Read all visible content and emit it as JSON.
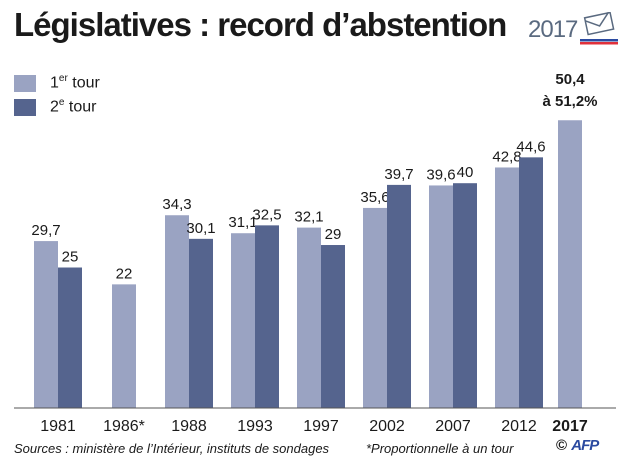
{
  "title": "Législatives : record d’abstention",
  "badge": {
    "year": "2017"
  },
  "legend": {
    "first": {
      "main": "1",
      "sup": "er",
      "rest": " tour"
    },
    "second": {
      "main": "2",
      "sup": "e",
      "rest": " tour"
    }
  },
  "colors": {
    "first_round": "#9aa3c2",
    "second_round": "#55648e",
    "axis": "#555555",
    "badge_red": "#e0303a",
    "badge_blue": "#2b4aa0"
  },
  "chart_data": {
    "type": "bar",
    "categories": [
      "1981",
      "1986*",
      "1988",
      "1993",
      "1997",
      "2002",
      "2007",
      "2012",
      "2017"
    ],
    "series": [
      {
        "name": "1er tour",
        "values": [
          29.7,
          22,
          34.3,
          31.1,
          32.1,
          35.6,
          39.6,
          42.8,
          51.2
        ]
      },
      {
        "name": "2e tour",
        "values": [
          25,
          null,
          30.1,
          32.5,
          29,
          39.7,
          40,
          44.6,
          null
        ]
      }
    ],
    "data_labels": {
      "first": [
        "29,7",
        "22",
        "34,3",
        "31,1",
        "32,1",
        "35,6",
        "39,6",
        "42,8",
        ""
      ],
      "second": [
        "25",
        "",
        "30,1",
        "32,5",
        "29",
        "39,7",
        "40",
        "44,6",
        ""
      ]
    },
    "highlight": {
      "category": "2017",
      "line1": "50,4",
      "line2": "à 51,2%"
    },
    "ylim": [
      0,
      55
    ],
    "grid": false,
    "legend_position": "top-left"
  },
  "footer": {
    "source": "Sources : ministère de l’Intérieur, instituts de sondages",
    "note": "*Proportionnelle à un tour",
    "credit": "©",
    "afp": "AFP"
  }
}
